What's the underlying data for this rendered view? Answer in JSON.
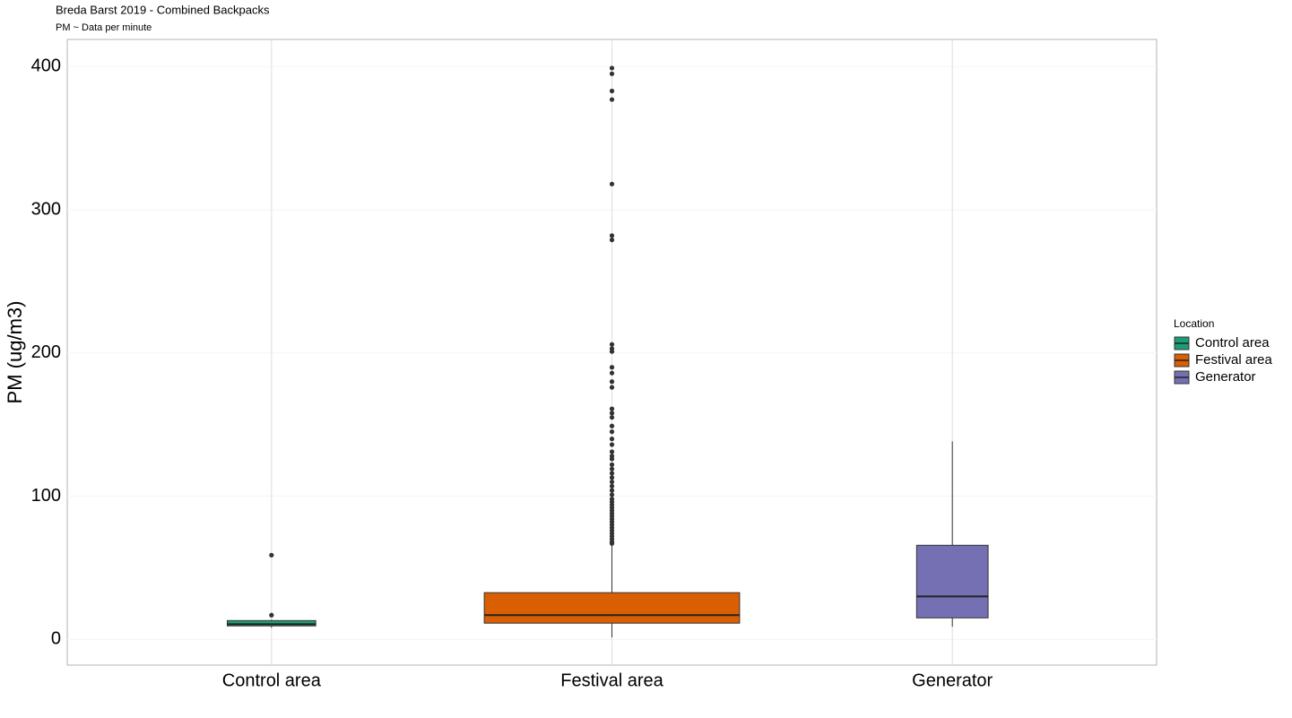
{
  "chart_data": {
    "type": "box",
    "title": "Breda Barst 2019 - Combined Backpacks",
    "subtitle": "PM ~ Data per minute",
    "y_label": "PM (ug/m3)",
    "categories": [
      "Control area",
      "Festival area",
      "Generator"
    ],
    "ylim": [
      -18,
      419
    ],
    "yticks": [
      0,
      100,
      200,
      300,
      400
    ],
    "grid": true,
    "legend": {
      "title": "Location",
      "position": "right"
    },
    "boxes": [
      {
        "name": "Control area",
        "color": "#1b9e77",
        "whislo": 8.1,
        "q1": 9.4,
        "med": 10.6,
        "q3": 13.1,
        "whishi": 13.8,
        "outliers": [
          16.9,
          58.8
        ]
      },
      {
        "name": "Festival area",
        "color": "#d95f02",
        "whislo": 1.3,
        "q1": 11.3,
        "med": 16.9,
        "q3": 32.6,
        "whishi": 66.4,
        "outliers": [
          67,
          68,
          70,
          72,
          74,
          76,
          78,
          80,
          82,
          84,
          86,
          88,
          90,
          92,
          94,
          96,
          98,
          101,
          104,
          107,
          110,
          113,
          116,
          119,
          122,
          126,
          128,
          131,
          136,
          140,
          145,
          149,
          155,
          158,
          161,
          176,
          180,
          186,
          190,
          201,
          203,
          206,
          279,
          282,
          318,
          377,
          383,
          395,
          399
        ]
      },
      {
        "name": "Generator",
        "color": "#7570b3",
        "whislo": 8.8,
        "q1": 15.0,
        "med": 30.0,
        "q3": 65.7,
        "whishi": 138.3,
        "outliers": []
      }
    ]
  }
}
